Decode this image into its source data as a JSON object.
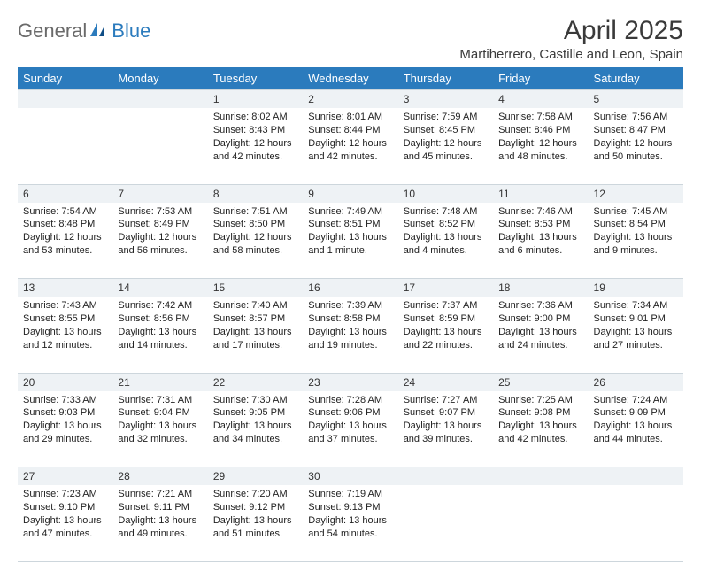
{
  "brand": {
    "general": "General",
    "blue": "Blue"
  },
  "title": "April 2025",
  "subtitle": "Martiherrero, Castille and Leon, Spain",
  "colors": {
    "header_bg": "#2b7bbd",
    "header_fg": "#ffffff",
    "num_bg": "#eef2f5",
    "border": "#cdd6dc"
  },
  "day_names": [
    "Sunday",
    "Monday",
    "Tuesday",
    "Wednesday",
    "Thursday",
    "Friday",
    "Saturday"
  ],
  "weeks": [
    [
      null,
      null,
      {
        "n": "1",
        "sr": "Sunrise: 8:02 AM",
        "ss": "Sunset: 8:43 PM",
        "dl": "Daylight: 12 hours and 42 minutes."
      },
      {
        "n": "2",
        "sr": "Sunrise: 8:01 AM",
        "ss": "Sunset: 8:44 PM",
        "dl": "Daylight: 12 hours and 42 minutes."
      },
      {
        "n": "3",
        "sr": "Sunrise: 7:59 AM",
        "ss": "Sunset: 8:45 PM",
        "dl": "Daylight: 12 hours and 45 minutes."
      },
      {
        "n": "4",
        "sr": "Sunrise: 7:58 AM",
        "ss": "Sunset: 8:46 PM",
        "dl": "Daylight: 12 hours and 48 minutes."
      },
      {
        "n": "5",
        "sr": "Sunrise: 7:56 AM",
        "ss": "Sunset: 8:47 PM",
        "dl": "Daylight: 12 hours and 50 minutes."
      }
    ],
    [
      {
        "n": "6",
        "sr": "Sunrise: 7:54 AM",
        "ss": "Sunset: 8:48 PM",
        "dl": "Daylight: 12 hours and 53 minutes."
      },
      {
        "n": "7",
        "sr": "Sunrise: 7:53 AM",
        "ss": "Sunset: 8:49 PM",
        "dl": "Daylight: 12 hours and 56 minutes."
      },
      {
        "n": "8",
        "sr": "Sunrise: 7:51 AM",
        "ss": "Sunset: 8:50 PM",
        "dl": "Daylight: 12 hours and 58 minutes."
      },
      {
        "n": "9",
        "sr": "Sunrise: 7:49 AM",
        "ss": "Sunset: 8:51 PM",
        "dl": "Daylight: 13 hours and 1 minute."
      },
      {
        "n": "10",
        "sr": "Sunrise: 7:48 AM",
        "ss": "Sunset: 8:52 PM",
        "dl": "Daylight: 13 hours and 4 minutes."
      },
      {
        "n": "11",
        "sr": "Sunrise: 7:46 AM",
        "ss": "Sunset: 8:53 PM",
        "dl": "Daylight: 13 hours and 6 minutes."
      },
      {
        "n": "12",
        "sr": "Sunrise: 7:45 AM",
        "ss": "Sunset: 8:54 PM",
        "dl": "Daylight: 13 hours and 9 minutes."
      }
    ],
    [
      {
        "n": "13",
        "sr": "Sunrise: 7:43 AM",
        "ss": "Sunset: 8:55 PM",
        "dl": "Daylight: 13 hours and 12 minutes."
      },
      {
        "n": "14",
        "sr": "Sunrise: 7:42 AM",
        "ss": "Sunset: 8:56 PM",
        "dl": "Daylight: 13 hours and 14 minutes."
      },
      {
        "n": "15",
        "sr": "Sunrise: 7:40 AM",
        "ss": "Sunset: 8:57 PM",
        "dl": "Daylight: 13 hours and 17 minutes."
      },
      {
        "n": "16",
        "sr": "Sunrise: 7:39 AM",
        "ss": "Sunset: 8:58 PM",
        "dl": "Daylight: 13 hours and 19 minutes."
      },
      {
        "n": "17",
        "sr": "Sunrise: 7:37 AM",
        "ss": "Sunset: 8:59 PM",
        "dl": "Daylight: 13 hours and 22 minutes."
      },
      {
        "n": "18",
        "sr": "Sunrise: 7:36 AM",
        "ss": "Sunset: 9:00 PM",
        "dl": "Daylight: 13 hours and 24 minutes."
      },
      {
        "n": "19",
        "sr": "Sunrise: 7:34 AM",
        "ss": "Sunset: 9:01 PM",
        "dl": "Daylight: 13 hours and 27 minutes."
      }
    ],
    [
      {
        "n": "20",
        "sr": "Sunrise: 7:33 AM",
        "ss": "Sunset: 9:03 PM",
        "dl": "Daylight: 13 hours and 29 minutes."
      },
      {
        "n": "21",
        "sr": "Sunrise: 7:31 AM",
        "ss": "Sunset: 9:04 PM",
        "dl": "Daylight: 13 hours and 32 minutes."
      },
      {
        "n": "22",
        "sr": "Sunrise: 7:30 AM",
        "ss": "Sunset: 9:05 PM",
        "dl": "Daylight: 13 hours and 34 minutes."
      },
      {
        "n": "23",
        "sr": "Sunrise: 7:28 AM",
        "ss": "Sunset: 9:06 PM",
        "dl": "Daylight: 13 hours and 37 minutes."
      },
      {
        "n": "24",
        "sr": "Sunrise: 7:27 AM",
        "ss": "Sunset: 9:07 PM",
        "dl": "Daylight: 13 hours and 39 minutes."
      },
      {
        "n": "25",
        "sr": "Sunrise: 7:25 AM",
        "ss": "Sunset: 9:08 PM",
        "dl": "Daylight: 13 hours and 42 minutes."
      },
      {
        "n": "26",
        "sr": "Sunrise: 7:24 AM",
        "ss": "Sunset: 9:09 PM",
        "dl": "Daylight: 13 hours and 44 minutes."
      }
    ],
    [
      {
        "n": "27",
        "sr": "Sunrise: 7:23 AM",
        "ss": "Sunset: 9:10 PM",
        "dl": "Daylight: 13 hours and 47 minutes."
      },
      {
        "n": "28",
        "sr": "Sunrise: 7:21 AM",
        "ss": "Sunset: 9:11 PM",
        "dl": "Daylight: 13 hours and 49 minutes."
      },
      {
        "n": "29",
        "sr": "Sunrise: 7:20 AM",
        "ss": "Sunset: 9:12 PM",
        "dl": "Daylight: 13 hours and 51 minutes."
      },
      {
        "n": "30",
        "sr": "Sunrise: 7:19 AM",
        "ss": "Sunset: 9:13 PM",
        "dl": "Daylight: 13 hours and 54 minutes."
      },
      null,
      null,
      null
    ]
  ]
}
